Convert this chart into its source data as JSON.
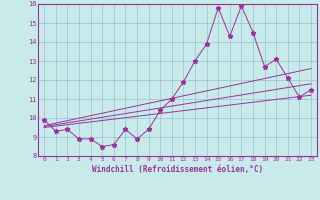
{
  "xlabel": "Windchill (Refroidissement éolien,°C)",
  "bg_color": "#c8eaea",
  "line_color": "#993399",
  "xlim": [
    -0.5,
    23.5
  ],
  "ylim": [
    8,
    16
  ],
  "xticks": [
    0,
    1,
    2,
    3,
    4,
    5,
    6,
    7,
    8,
    9,
    10,
    11,
    12,
    13,
    14,
    15,
    16,
    17,
    18,
    19,
    20,
    21,
    22,
    23
  ],
  "yticks": [
    8,
    9,
    10,
    11,
    12,
    13,
    14,
    15,
    16
  ],
  "main_x": [
    0,
    1,
    2,
    3,
    4,
    5,
    6,
    7,
    8,
    9,
    10,
    11,
    12,
    13,
    14,
    15,
    16,
    17,
    18,
    19,
    20,
    21,
    22,
    23
  ],
  "main_y": [
    9.9,
    9.3,
    9.4,
    8.9,
    8.9,
    8.5,
    8.6,
    9.4,
    8.9,
    9.4,
    10.4,
    11.0,
    11.9,
    13.0,
    13.9,
    15.8,
    14.3,
    15.9,
    14.5,
    12.7,
    13.1,
    12.1,
    11.1,
    11.5
  ],
  "line1_x": [
    0,
    23
  ],
  "line1_y": [
    9.5,
    11.2
  ],
  "line2_x": [
    0,
    23
  ],
  "line2_y": [
    9.55,
    11.8
  ],
  "line3_x": [
    0,
    23
  ],
  "line3_y": [
    9.6,
    12.6
  ],
  "grid_color": "#9bbfcf",
  "marker": "*",
  "marker_size": 3.5,
  "tick_color": "#993399",
  "tick_fontsize": 4.5,
  "xlabel_fontsize": 5.5
}
